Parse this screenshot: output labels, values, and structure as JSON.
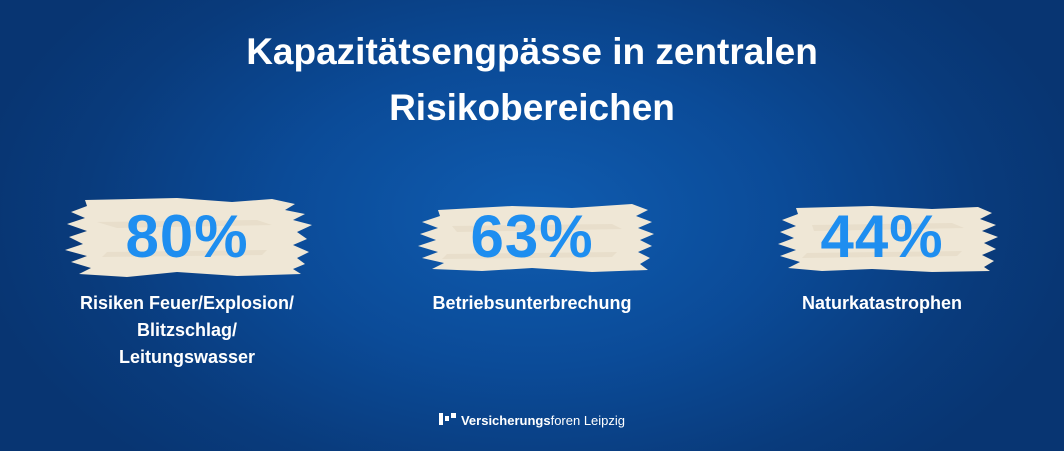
{
  "title": {
    "line1": "Kapazitätsengpässe in zentralen",
    "line2": "Risikobereichen"
  },
  "stats": [
    {
      "value": "80%",
      "label_lines": [
        "Risiken Feuer/Explosion/",
        "Blitzschlag/",
        "Leitungswasser"
      ]
    },
    {
      "value": "63%",
      "label_lines": [
        "Betriebsunterbrechung"
      ]
    },
    {
      "value": "44%",
      "label_lines": [
        "Naturkatastrophen"
      ]
    }
  ],
  "logo": {
    "bold": "Versicherungs",
    "light": "foren Leipzig",
    "icon": "versicherungsforen-logo-icon"
  },
  "colors": {
    "background": "#0b4b98",
    "percent": "#1e8ef0",
    "brush": "#efe7d6",
    "text": "#ffffff"
  }
}
